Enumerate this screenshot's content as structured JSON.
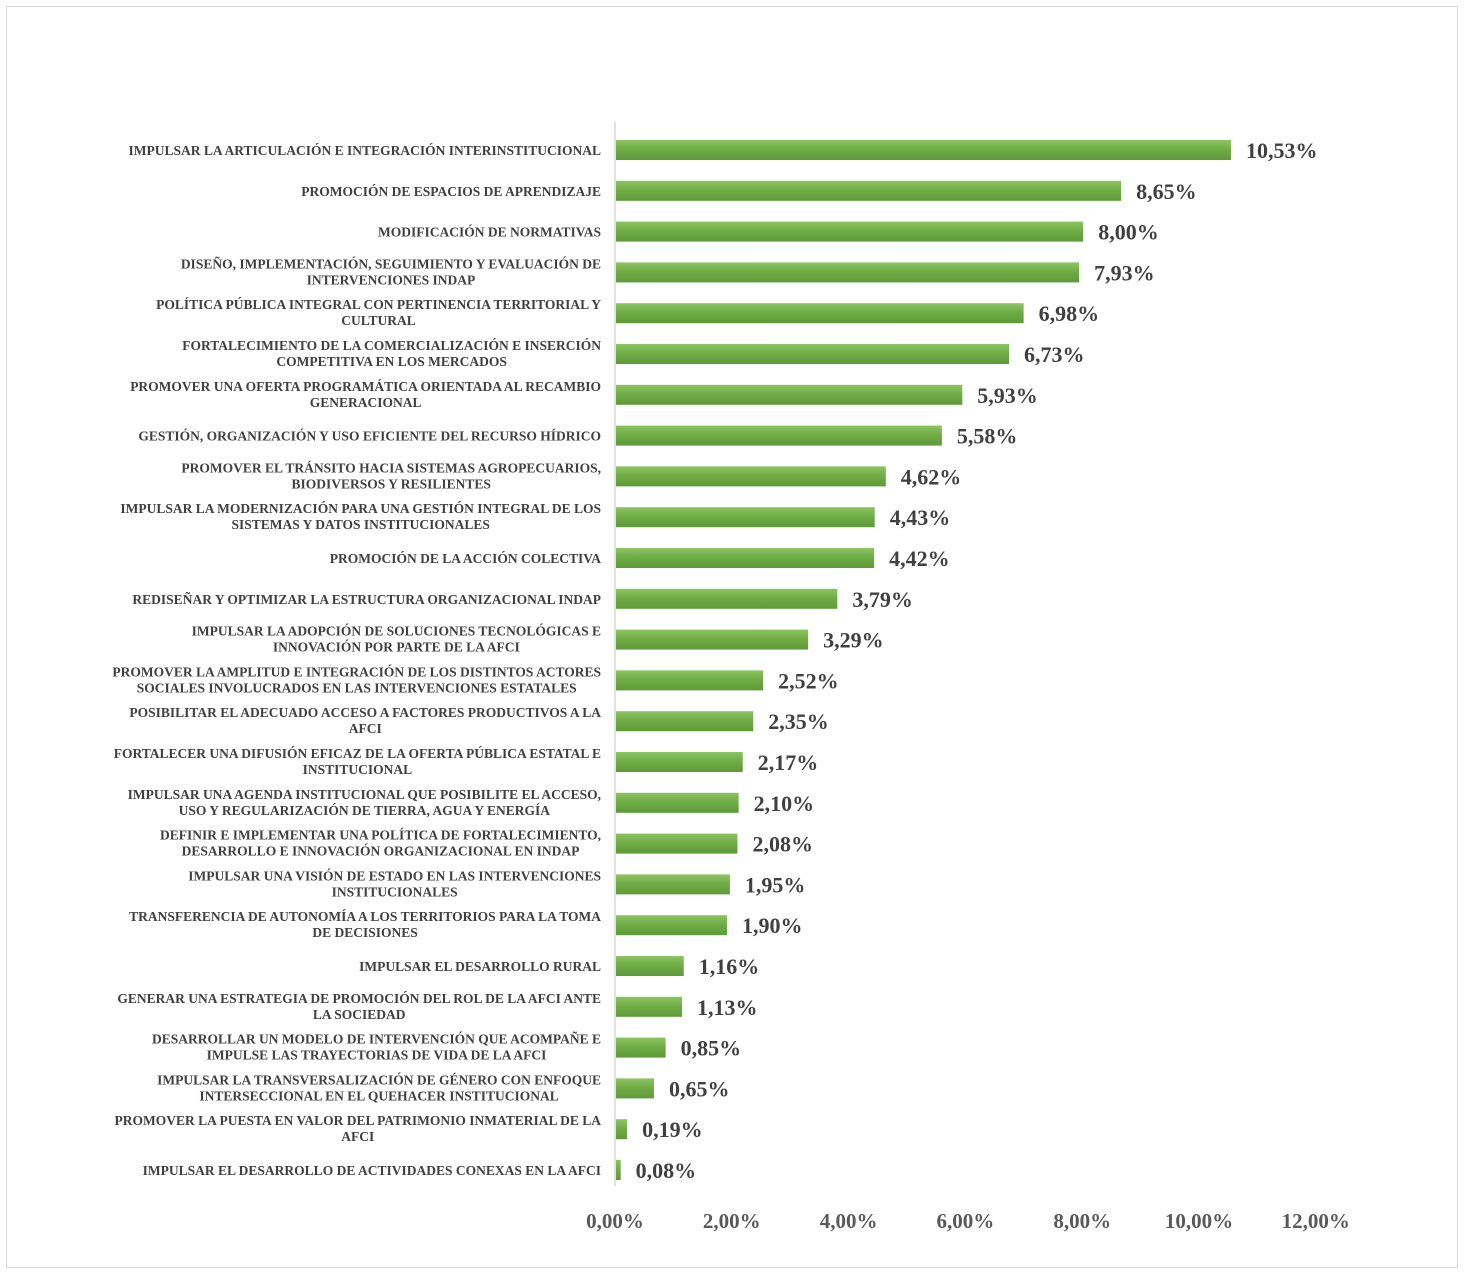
{
  "chart_data": {
    "type": "bar",
    "orientation": "horizontal",
    "categories": [
      [
        "IMPULSAR LA ARTICULACIÓN E INTEGRACIÓN INTERINSTITUCIONAL"
      ],
      [
        "PROMOCIÓN DE ESPACIOS DE APRENDIZAJE"
      ],
      [
        "MODIFICACIÓN DE NORMATIVAS"
      ],
      [
        "DISEÑO, IMPLEMENTACIÓN, SEGUIMIENTO Y EVALUACIÓN DE",
        "INTERVENCIONES INDAP"
      ],
      [
        "POLÍTICA PÚBLICA INTEGRAL CON PERTINENCIA TERRITORIAL Y",
        "CULTURAL"
      ],
      [
        "FORTALECIMIENTO DE LA COMERCIALIZACIÓN E INSERCIÓN",
        "COMPETITIVA EN LOS MERCADOS"
      ],
      [
        "PROMOVER UNA OFERTA PROGRAMÁTICA ORIENTADA AL RECAMBIO",
        "GENERACIONAL"
      ],
      [
        "GESTIÓN, ORGANIZACIÓN Y USO EFICIENTE DEL RECURSO HÍDRICO"
      ],
      [
        "PROMOVER EL TRÁNSITO HACIA SISTEMAS AGROPECUARIOS,",
        "BIODIVERSOS Y RESILIENTES"
      ],
      [
        "IMPULSAR LA MODERNIZACIÓN PARA UNA GESTIÓN INTEGRAL DE LOS",
        "SISTEMAS Y DATOS INSTITUCIONALES"
      ],
      [
        "PROMOCIÓN DE LA ACCIÓN COLECTIVA"
      ],
      [
        "REDISEÑAR Y OPTIMIZAR LA ESTRUCTURA ORGANIZACIONAL INDAP"
      ],
      [
        "IMPULSAR LA ADOPCIÓN DE SOLUCIONES TECNOLÓGICAS E",
        "INNOVACIÓN POR PARTE DE LA AFCI"
      ],
      [
        "PROMOVER LA AMPLITUD E INTEGRACIÓN DE LOS DISTINTOS ACTORES",
        "SOCIALES INVOLUCRADOS EN LAS INTERVENCIONES ESTATALES"
      ],
      [
        "POSIBILITAR EL ADECUADO ACCESO A FACTORES PRODUCTIVOS A LA",
        "AFCI"
      ],
      [
        "FORTALECER UNA DIFUSIÓN EFICAZ DE LA OFERTA PÚBLICA ESTATAL E",
        "INSTITUCIONAL"
      ],
      [
        "IMPULSAR UNA AGENDA INSTITUCIONAL QUE POSIBILITE EL ACCESO,",
        "USO Y REGULARIZACIÓN DE TIERRA, AGUA Y ENERGÍA"
      ],
      [
        "DEFINIR E IMPLEMENTAR UNA POLÍTICA DE FORTALECIMIENTO,",
        "DESARROLLO E INNOVACIÓN ORGANIZACIONAL EN INDAP"
      ],
      [
        "IMPULSAR UNA VISIÓN DE ESTADO EN LAS INTERVENCIONES",
        "INSTITUCIONALES"
      ],
      [
        "TRANSFERENCIA DE AUTONOMÍA A LOS TERRITORIOS PARA LA TOMA",
        "DE DECISIONES"
      ],
      [
        "IMPULSAR EL DESARROLLO RURAL"
      ],
      [
        "GENERAR UNA ESTRATEGIA DE PROMOCIÓN DEL ROL DE LA AFCI ANTE",
        "LA SOCIEDAD"
      ],
      [
        "DESARROLLAR UN MODELO DE INTERVENCIÓN QUE ACOMPAÑE E",
        "IMPULSE LAS TRAYECTORIAS DE VIDA DE LA AFCI"
      ],
      [
        "IMPULSAR LA TRANSVERSALIZACIÓN DE GÉNERO CON ENFOQUE",
        "INTERSECCIONAL EN EL QUEHACER INSTITUCIONAL"
      ],
      [
        "PROMOVER LA PUESTA EN VALOR DEL PATRIMONIO INMATERIAL DE LA",
        "AFCI"
      ],
      [
        "IMPULSAR EL DESARROLLO DE ACTIVIDADES CONEXAS EN LA AFCI"
      ]
    ],
    "values": [
      10.53,
      8.65,
      8.0,
      7.93,
      6.98,
      6.73,
      5.93,
      5.58,
      4.62,
      4.43,
      4.42,
      3.79,
      3.29,
      2.52,
      2.35,
      2.17,
      2.1,
      2.08,
      1.95,
      1.9,
      1.16,
      1.13,
      0.85,
      0.65,
      0.19,
      0.08
    ],
    "value_labels": [
      "10,53%",
      "8,65%",
      "8,00%",
      "7,93%",
      "6,98%",
      "6,73%",
      "5,93%",
      "5,58%",
      "4,62%",
      "4,43%",
      "4,42%",
      "3,79%",
      "3,29%",
      "2,52%",
      "2,35%",
      "2,17%",
      "2,10%",
      "2,08%",
      "1,95%",
      "1,90%",
      "1,16%",
      "1,13%",
      "0,85%",
      "0,65%",
      "0,19%",
      "0,08%"
    ],
    "x_ticks": [
      0,
      2,
      4,
      6,
      8,
      10,
      12
    ],
    "x_tick_labels": [
      "0,00%",
      "2,00%",
      "4,00%",
      "6,00%",
      "8,00%",
      "10,00%",
      "12,00%"
    ],
    "xlim": [
      0,
      12
    ],
    "title": "",
    "xlabel": "",
    "ylabel": "",
    "grid": false,
    "legend": "none",
    "colors": {
      "bar": "#70ad47",
      "bar_light": "#8cc461",
      "bar_dark": "#5e9a38",
      "axis": "#d9d9d9",
      "text": "#404040",
      "tick_text": "#595959"
    }
  }
}
